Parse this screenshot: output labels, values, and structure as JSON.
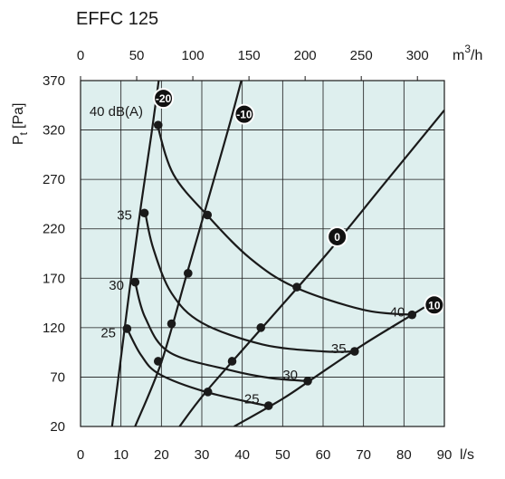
{
  "chart_data": {
    "type": "line",
    "title": "EFFC 125",
    "ylabel_main": "P",
    "ylabel_sub": "t",
    "ylabel_unit": "[Pa]",
    "xlabel": "l/s",
    "x2label_main": "m",
    "x2label_sup": "3",
    "x2label_tail": "/h",
    "xlim": [
      0,
      90
    ],
    "ylim": [
      20,
      370
    ],
    "x_ticks": [
      "0",
      "10",
      "20",
      "30",
      "40",
      "50",
      "60",
      "70",
      "80",
      "90"
    ],
    "x2_ticks": [
      "0",
      "50",
      "100",
      "150",
      "200",
      "250",
      "300"
    ],
    "y_ticks": [
      "20",
      "70",
      "120",
      "170",
      "220",
      "270",
      "320",
      "370"
    ],
    "grid": true,
    "colors": {
      "background": "#deefee",
      "grid": "#1a1a1a",
      "curve": "#1a1a1a",
      "frame": "#1a1a1a"
    },
    "damper_curves": [
      {
        "name": "-20",
        "points": [
          [
            7.8,
            20
          ],
          [
            10,
            90
          ],
          [
            12.5,
            170
          ],
          [
            15,
            245
          ],
          [
            17.5,
            315
          ],
          [
            20,
            390
          ]
        ]
      },
      {
        "name": "-10",
        "points": [
          [
            13.5,
            20
          ],
          [
            20,
            85
          ],
          [
            26,
            170
          ],
          [
            33,
            270
          ],
          [
            37.5,
            335
          ],
          [
            42,
            405
          ]
        ]
      },
      {
        "name": "0",
        "points": [
          [
            24.5,
            20
          ],
          [
            31,
            55
          ],
          [
            46,
            125
          ],
          [
            61,
            195
          ],
          [
            75,
            265
          ],
          [
            90,
            340
          ]
        ]
      },
      {
        "name": "10",
        "points": [
          [
            38,
            20
          ],
          [
            50,
            48
          ],
          [
            58,
            70
          ],
          [
            70,
            103
          ],
          [
            82,
            133
          ],
          [
            88,
            148
          ]
        ]
      }
    ],
    "sound_curves": [
      {
        "name": "40 dB(A)",
        "points": [
          [
            19,
            325
          ],
          [
            23,
            275
          ],
          [
            31.5,
            233
          ],
          [
            42,
            190
          ],
          [
            53,
            161
          ],
          [
            70,
            138
          ],
          [
            82,
            133
          ]
        ]
      },
      {
        "name": "35",
        "points": [
          [
            16,
            236
          ],
          [
            18,
            200
          ],
          [
            22.5,
            155
          ],
          [
            30,
            125
          ],
          [
            45,
            103
          ],
          [
            60,
            96
          ],
          [
            68,
            96
          ]
        ]
      },
      {
        "name": "30",
        "points": [
          [
            13.5,
            166
          ],
          [
            16,
            130
          ],
          [
            22,
            95
          ],
          [
            37,
            77
          ],
          [
            47,
            69
          ],
          [
            56,
            66
          ]
        ]
      },
      {
        "name": "25",
        "points": [
          [
            11.5,
            119
          ],
          [
            15,
            92
          ],
          [
            19.5,
            73
          ],
          [
            31,
            55
          ],
          [
            46,
            41
          ]
        ]
      }
    ],
    "markers": [
      [
        19.2,
        325
      ],
      [
        31.4,
        234
      ],
      [
        53.5,
        161
      ],
      [
        82,
        133
      ],
      [
        15.8,
        236
      ],
      [
        26.6,
        175
      ],
      [
        44.6,
        120
      ],
      [
        67.8,
        96
      ],
      [
        13.5,
        166
      ],
      [
        22.5,
        124
      ],
      [
        37.5,
        86
      ],
      [
        56.2,
        66
      ],
      [
        11.5,
        119
      ],
      [
        19.2,
        86
      ],
      [
        31.5,
        55
      ],
      [
        46.5,
        41
      ]
    ],
    "damper_badges": [
      {
        "label": "-20",
        "x": 20.5,
        "y": 352
      },
      {
        "label": "-10",
        "x": 40.5,
        "y": 336
      },
      {
        "label": "0",
        "x": 63.5,
        "y": 212
      },
      {
        "label": "10",
        "x": 87.5,
        "y": 143
      }
    ],
    "sound_labels": [
      {
        "label": "40 dB(A)",
        "x": 2.2,
        "y": 339
      },
      {
        "label": "35",
        "x": 9,
        "y": 234
      },
      {
        "label": "30",
        "x": 7,
        "y": 163
      },
      {
        "label": "25",
        "x": 5,
        "y": 115
      },
      {
        "label": "40",
        "x": 76.5,
        "y": 136
      },
      {
        "label": "35",
        "x": 62,
        "y": 99
      },
      {
        "label": "30",
        "x": 50,
        "y": 72
      },
      {
        "label": "25",
        "x": 40.5,
        "y": 48
      }
    ]
  }
}
